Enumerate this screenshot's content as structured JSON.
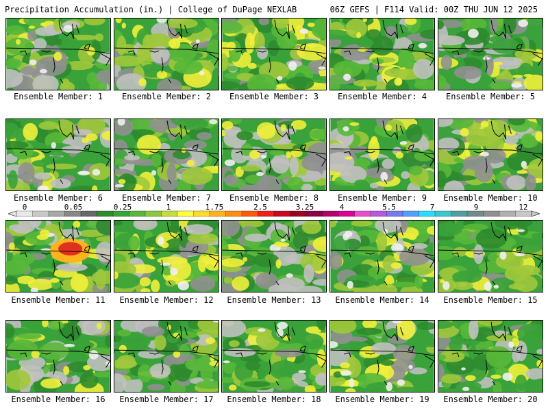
{
  "header": {
    "left": "Precipitation Accumulation (in.) | College of DuPage NEXLAB",
    "right": "06Z GEFS | F114 Valid: 00Z THU JUN 12 2025"
  },
  "panels": [
    {
      "label": "Ensemble Member: 1"
    },
    {
      "label": "Ensemble Member: 2"
    },
    {
      "label": "Ensemble Member: 3"
    },
    {
      "label": "Ensemble Member: 4"
    },
    {
      "label": "Ensemble Member: 5"
    },
    {
      "label": "Ensemble Member: 6"
    },
    {
      "label": "Ensemble Member: 7"
    },
    {
      "label": "Ensemble Member: 8"
    },
    {
      "label": "Ensemble Member: 9"
    },
    {
      "label": "Ensemble Member: 10"
    },
    {
      "label": "Ensemble Member: 11"
    },
    {
      "label": "Ensemble Member: 12"
    },
    {
      "label": "Ensemble Member: 13"
    },
    {
      "label": "Ensemble Member: 14"
    },
    {
      "label": "Ensemble Member: 15"
    },
    {
      "label": "Ensemble Member: 16"
    },
    {
      "label": "Ensemble Member: 17"
    },
    {
      "label": "Ensemble Member: 18"
    },
    {
      "label": "Ensemble Member: 19"
    },
    {
      "label": "Ensemble Member: 20"
    }
  ],
  "colorbar": {
    "tick_labels": [
      "0",
      "0.05",
      "0.25",
      "1",
      "1.75",
      "2.5",
      "3.25",
      "4",
      "5.5",
      "7",
      "9",
      "12"
    ],
    "colors": [
      "#e8e8e8",
      "#c8c8c8",
      "#a8a8a8",
      "#888888",
      "#686868",
      "#2e8b2e",
      "#3aa23a",
      "#58b83a",
      "#8cc83c",
      "#c8dc3c",
      "#ffff3c",
      "#ffdc28",
      "#ffb41e",
      "#ff8c14",
      "#ff5a0a",
      "#f01e1e",
      "#c80a1e",
      "#a0001e",
      "#8c0046",
      "#b4006e",
      "#dc0096",
      "#e650c8",
      "#b45adc",
      "#7878f0",
      "#50a0ff",
      "#28dcff",
      "#3cc8c8",
      "#50a0a0",
      "#708c8c",
      "#909090",
      "#b0b0b0",
      "#c8c8c8"
    ]
  },
  "map_colors": {
    "green_dark": "#2e8b2e",
    "green": "#3aa23a",
    "green_light": "#58b83a",
    "yellow_green": "#a0c83c",
    "yellow": "#f0f03c",
    "orange": "#ffb41e",
    "red": "#e03020",
    "gray_dark": "#6a6a6a",
    "gray": "#909090",
    "gray_light": "#c0c0c0",
    "white": "#f0f0f0"
  }
}
